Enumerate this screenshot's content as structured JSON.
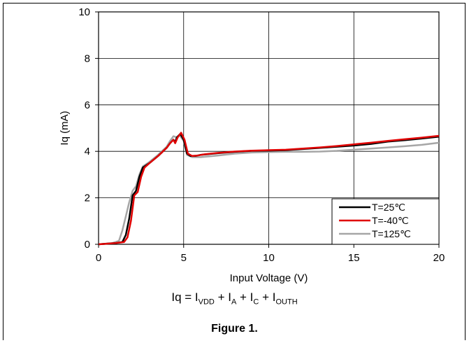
{
  "chart_data": {
    "type": "line",
    "title": "",
    "xlabel": "Input Voltage (V)",
    "ylabel": "Iq (mA)",
    "xlim": [
      0,
      20
    ],
    "ylim": [
      0,
      10
    ],
    "xticks": [
      0,
      5,
      10,
      15,
      20
    ],
    "yticks": [
      0,
      2,
      4,
      6,
      8,
      10
    ],
    "xtick_labels": [
      "0",
      "5",
      "10",
      "15",
      "20"
    ],
    "ytick_labels": [
      "0",
      "2",
      "4",
      "6",
      "8",
      "10"
    ],
    "grid": true,
    "legend_position": "bottom-right",
    "series": [
      {
        "name": "T=25℃",
        "color": "#000000",
        "points": [
          [
            0,
            0
          ],
          [
            1,
            0.05
          ],
          [
            1.4,
            0.1
          ],
          [
            1.6,
            0.4
          ],
          [
            1.8,
            1.1
          ],
          [
            2.0,
            2.1
          ],
          [
            2.2,
            2.3
          ],
          [
            2.4,
            2.9
          ],
          [
            2.6,
            3.3
          ],
          [
            3.0,
            3.5
          ],
          [
            3.5,
            3.8
          ],
          [
            4.0,
            4.15
          ],
          [
            4.2,
            4.35
          ],
          [
            4.4,
            4.5
          ],
          [
            4.5,
            4.4
          ],
          [
            4.6,
            4.6
          ],
          [
            4.8,
            4.75
          ],
          [
            5.0,
            4.5
          ],
          [
            5.2,
            3.9
          ],
          [
            5.4,
            3.8
          ],
          [
            5.7,
            3.8
          ],
          [
            6.0,
            3.85
          ],
          [
            7,
            3.92
          ],
          [
            8,
            3.98
          ],
          [
            9,
            4.02
          ],
          [
            10,
            4.03
          ],
          [
            11,
            4.05
          ],
          [
            12,
            4.1
          ],
          [
            13,
            4.15
          ],
          [
            14,
            4.2
          ],
          [
            15,
            4.25
          ],
          [
            16,
            4.32
          ],
          [
            17,
            4.42
          ],
          [
            18,
            4.48
          ],
          [
            19,
            4.55
          ],
          [
            20,
            4.63
          ]
        ]
      },
      {
        "name": "T=-40℃",
        "color": "#e00000",
        "points": [
          [
            0,
            0
          ],
          [
            1,
            0.05
          ],
          [
            1.5,
            0.1
          ],
          [
            1.7,
            0.3
          ],
          [
            1.9,
            1.0
          ],
          [
            2.1,
            2.1
          ],
          [
            2.3,
            2.25
          ],
          [
            2.5,
            2.9
          ],
          [
            2.7,
            3.3
          ],
          [
            3.0,
            3.5
          ],
          [
            3.5,
            3.8
          ],
          [
            4.0,
            4.15
          ],
          [
            4.2,
            4.35
          ],
          [
            4.4,
            4.5
          ],
          [
            4.5,
            4.35
          ],
          [
            4.65,
            4.6
          ],
          [
            4.85,
            4.8
          ],
          [
            5.05,
            4.5
          ],
          [
            5.25,
            3.9
          ],
          [
            5.5,
            3.8
          ],
          [
            5.8,
            3.82
          ],
          [
            6.2,
            3.87
          ],
          [
            7,
            3.93
          ],
          [
            8,
            3.99
          ],
          [
            9,
            4.03
          ],
          [
            10,
            4.05
          ],
          [
            11,
            4.07
          ],
          [
            12,
            4.12
          ],
          [
            13,
            4.17
          ],
          [
            14,
            4.23
          ],
          [
            15,
            4.3
          ],
          [
            16,
            4.37
          ],
          [
            17,
            4.45
          ],
          [
            18,
            4.52
          ],
          [
            19,
            4.59
          ],
          [
            20,
            4.67
          ]
        ]
      },
      {
        "name": "T=125℃",
        "color": "#a6a6a6",
        "points": [
          [
            0,
            0
          ],
          [
            0.8,
            0.05
          ],
          [
            1.2,
            0.15
          ],
          [
            1.4,
            0.6
          ],
          [
            1.6,
            1.2
          ],
          [
            1.8,
            1.8
          ],
          [
            2.0,
            2.3
          ],
          [
            2.2,
            2.5
          ],
          [
            2.4,
            3.0
          ],
          [
            2.6,
            3.35
          ],
          [
            3.0,
            3.55
          ],
          [
            3.5,
            3.85
          ],
          [
            4.0,
            4.2
          ],
          [
            4.2,
            4.45
          ],
          [
            4.4,
            4.65
          ],
          [
            4.6,
            4.6
          ],
          [
            4.75,
            4.7
          ],
          [
            5.0,
            4.45
          ],
          [
            5.2,
            3.85
          ],
          [
            5.5,
            3.75
          ],
          [
            6,
            3.75
          ],
          [
            7,
            3.82
          ],
          [
            8,
            3.9
          ],
          [
            9,
            3.95
          ],
          [
            10,
            3.97
          ],
          [
            11,
            3.98
          ],
          [
            12,
            3.98
          ],
          [
            13,
            3.99
          ],
          [
            14,
            4.02
          ],
          [
            15,
            4.07
          ],
          [
            16,
            4.12
          ],
          [
            17,
            4.17
          ],
          [
            18,
            4.22
          ],
          [
            19,
            4.28
          ],
          [
            20,
            4.37
          ]
        ]
      }
    ]
  },
  "formula": {
    "lhs": "Iq = I",
    "sub1": "VDD",
    "plus1": " + I",
    "sub2": "A",
    "plus2": " + I",
    "sub3": "C",
    "plus3": " + I",
    "sub4": "OUTH"
  },
  "caption": "Figure 1."
}
